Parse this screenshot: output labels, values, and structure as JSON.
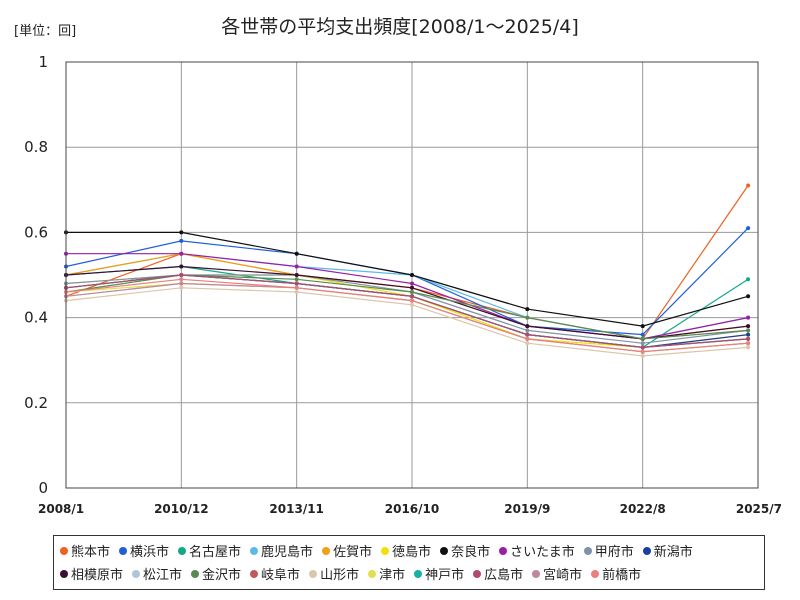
{
  "unit_label": "[単位：回]",
  "title": "各世帯の平均支出頻度[2008/1～2025/4]",
  "chart_data": {
    "type": "line",
    "title": "各世帯の平均支出頻度[2008/1～2025/4]",
    "ylabel": "[単位：回]",
    "xlabel": "",
    "ylim": [
      0,
      1
    ],
    "yticks": [
      "0",
      "0.2",
      "0.4",
      "0.6",
      "0.8",
      "1"
    ],
    "xticks": [
      "2008/1",
      "2010/12",
      "2013/11",
      "2016/10",
      "2019/9",
      "2022/8",
      "2025/7"
    ],
    "x_range": [
      "2008/1",
      "2025/7"
    ],
    "data_range": [
      "2008/1",
      "2025/4"
    ],
    "grid": true,
    "legend_position": "bottom",
    "series": [
      {
        "name": "熊本市",
        "color": "#f06020",
        "values": [
          {
            "x": "2008/1",
            "y": 0.45
          },
          {
            "x": "2010/12",
            "y": 0.55
          },
          {
            "x": "2013/11",
            "y": 0.5
          },
          {
            "x": "2016/10",
            "y": 0.47
          },
          {
            "x": "2019/9",
            "y": 0.4
          },
          {
            "x": "2022/8",
            "y": 0.35
          },
          {
            "x": "2025/4",
            "y": 0.71
          }
        ]
      },
      {
        "name": "横浜市",
        "color": "#1f5fd6",
        "values": [
          {
            "x": "2008/1",
            "y": 0.52
          },
          {
            "x": "2010/12",
            "y": 0.58
          },
          {
            "x": "2013/11",
            "y": 0.55
          },
          {
            "x": "2016/10",
            "y": 0.5
          },
          {
            "x": "2019/9",
            "y": 0.38
          },
          {
            "x": "2022/8",
            "y": 0.36
          },
          {
            "x": "2025/4",
            "y": 0.61
          }
        ]
      },
      {
        "name": "名古屋市",
        "color": "#14a888",
        "values": [
          {
            "x": "2008/1",
            "y": 0.5
          },
          {
            "x": "2010/12",
            "y": 0.52
          },
          {
            "x": "2013/11",
            "y": 0.48
          },
          {
            "x": "2016/10",
            "y": 0.45
          },
          {
            "x": "2019/9",
            "y": 0.36
          },
          {
            "x": "2022/8",
            "y": 0.33
          },
          {
            "x": "2025/4",
            "y": 0.49
          }
        ]
      },
      {
        "name": "鹿児島市",
        "color": "#5bbbe8",
        "values": [
          {
            "x": "2008/1",
            "y": 0.5
          },
          {
            "x": "2010/12",
            "y": 0.55
          },
          {
            "x": "2013/11",
            "y": 0.52
          },
          {
            "x": "2016/10",
            "y": 0.5
          },
          {
            "x": "2019/9",
            "y": 0.4
          },
          {
            "x": "2022/8",
            "y": 0.35
          },
          {
            "x": "2025/4",
            "y": 0.4
          }
        ]
      },
      {
        "name": "佐賀市",
        "color": "#f0a010",
        "values": [
          {
            "x": "2008/1",
            "y": 0.5
          },
          {
            "x": "2010/12",
            "y": 0.55
          },
          {
            "x": "2013/11",
            "y": 0.5
          },
          {
            "x": "2016/10",
            "y": 0.47
          },
          {
            "x": "2019/9",
            "y": 0.38
          },
          {
            "x": "2022/8",
            "y": 0.35
          },
          {
            "x": "2025/4",
            "y": 0.38
          }
        ]
      },
      {
        "name": "徳島市",
        "color": "#f2df10",
        "values": [
          {
            "x": "2008/1",
            "y": 0.48
          },
          {
            "x": "2010/12",
            "y": 0.5
          },
          {
            "x": "2013/11",
            "y": 0.5
          },
          {
            "x": "2016/10",
            "y": 0.45
          },
          {
            "x": "2019/9",
            "y": 0.35
          },
          {
            "x": "2022/8",
            "y": 0.33
          },
          {
            "x": "2025/4",
            "y": 0.36
          }
        ]
      },
      {
        "name": "奈良市",
        "color": "#111111",
        "values": [
          {
            "x": "2008/1",
            "y": 0.6
          },
          {
            "x": "2010/12",
            "y": 0.6
          },
          {
            "x": "2013/11",
            "y": 0.55
          },
          {
            "x": "2016/10",
            "y": 0.5
          },
          {
            "x": "2019/9",
            "y": 0.42
          },
          {
            "x": "2022/8",
            "y": 0.38
          },
          {
            "x": "2025/4",
            "y": 0.45
          }
        ]
      },
      {
        "name": "さいたま市",
        "color": "#9a1fa8",
        "values": [
          {
            "x": "2008/1",
            "y": 0.55
          },
          {
            "x": "2010/12",
            "y": 0.55
          },
          {
            "x": "2013/11",
            "y": 0.52
          },
          {
            "x": "2016/10",
            "y": 0.48
          },
          {
            "x": "2019/9",
            "y": 0.38
          },
          {
            "x": "2022/8",
            "y": 0.35
          },
          {
            "x": "2025/4",
            "y": 0.4
          }
        ]
      },
      {
        "name": "甲府市",
        "color": "#7f93a8",
        "values": [
          {
            "x": "2008/1",
            "y": 0.48
          },
          {
            "x": "2010/12",
            "y": 0.5
          },
          {
            "x": "2013/11",
            "y": 0.5
          },
          {
            "x": "2016/10",
            "y": 0.46
          },
          {
            "x": "2019/9",
            "y": 0.37
          },
          {
            "x": "2022/8",
            "y": 0.34
          },
          {
            "x": "2025/4",
            "y": 0.37
          }
        ]
      },
      {
        "name": "新潟市",
        "color": "#1a3f9c",
        "values": [
          {
            "x": "2008/1",
            "y": 0.47
          },
          {
            "x": "2010/12",
            "y": 0.5
          },
          {
            "x": "2013/11",
            "y": 0.48
          },
          {
            "x": "2016/10",
            "y": 0.45
          },
          {
            "x": "2019/9",
            "y": 0.36
          },
          {
            "x": "2022/8",
            "y": 0.33
          },
          {
            "x": "2025/4",
            "y": 0.36
          }
        ]
      },
      {
        "name": "相模原市",
        "color": "#3a1030",
        "values": [
          {
            "x": "2008/1",
            "y": 0.5
          },
          {
            "x": "2010/12",
            "y": 0.52
          },
          {
            "x": "2013/11",
            "y": 0.5
          },
          {
            "x": "2016/10",
            "y": 0.47
          },
          {
            "x": "2019/9",
            "y": 0.38
          },
          {
            "x": "2022/8",
            "y": 0.35
          },
          {
            "x": "2025/4",
            "y": 0.38
          }
        ]
      },
      {
        "name": "松江市",
        "color": "#b0c4d8",
        "values": [
          {
            "x": "2008/1",
            "y": 0.45
          },
          {
            "x": "2010/12",
            "y": 0.48
          },
          {
            "x": "2013/11",
            "y": 0.47
          },
          {
            "x": "2016/10",
            "y": 0.44
          },
          {
            "x": "2019/9",
            "y": 0.35
          },
          {
            "x": "2022/8",
            "y": 0.32
          },
          {
            "x": "2025/4",
            "y": 0.34
          }
        ]
      },
      {
        "name": "金沢市",
        "color": "#5a8a50",
        "values": [
          {
            "x": "2008/1",
            "y": 0.46
          },
          {
            "x": "2010/12",
            "y": 0.5
          },
          {
            "x": "2013/11",
            "y": 0.49
          },
          {
            "x": "2016/10",
            "y": 0.46
          },
          {
            "x": "2019/9",
            "y": 0.4
          },
          {
            "x": "2022/8",
            "y": 0.35
          },
          {
            "x": "2025/4",
            "y": 0.37
          }
        ]
      },
      {
        "name": "岐阜市",
        "color": "#c05a5a",
        "values": [
          {
            "x": "2008/1",
            "y": 0.47
          },
          {
            "x": "2010/12",
            "y": 0.5
          },
          {
            "x": "2013/11",
            "y": 0.48
          },
          {
            "x": "2016/10",
            "y": 0.45
          },
          {
            "x": "2019/9",
            "y": 0.36
          },
          {
            "x": "2022/8",
            "y": 0.33
          },
          {
            "x": "2025/4",
            "y": 0.35
          }
        ]
      },
      {
        "name": "山形市",
        "color": "#dcc6aa",
        "values": [
          {
            "x": "2008/1",
            "y": 0.44
          },
          {
            "x": "2010/12",
            "y": 0.47
          },
          {
            "x": "2013/11",
            "y": 0.46
          },
          {
            "x": "2016/10",
            "y": 0.43
          },
          {
            "x": "2019/9",
            "y": 0.34
          },
          {
            "x": "2022/8",
            "y": 0.31
          },
          {
            "x": "2025/4",
            "y": 0.33
          }
        ]
      },
      {
        "name": "津市",
        "color": "#e0e050",
        "values": [
          {
            "x": "2008/1",
            "y": 0.46
          },
          {
            "x": "2010/12",
            "y": 0.48
          },
          {
            "x": "2013/11",
            "y": 0.47
          },
          {
            "x": "2016/10",
            "y": 0.44
          },
          {
            "x": "2019/9",
            "y": 0.35
          },
          {
            "x": "2022/8",
            "y": 0.32
          },
          {
            "x": "2025/4",
            "y": 0.34
          }
        ]
      },
      {
        "name": "神戸市",
        "color": "#18b0a0",
        "values": [
          {
            "x": "2008/1",
            "y": 0.47
          },
          {
            "x": "2010/12",
            "y": 0.5
          },
          {
            "x": "2013/11",
            "y": 0.48
          },
          {
            "x": "2016/10",
            "y": 0.45
          },
          {
            "x": "2019/9",
            "y": 0.36
          },
          {
            "x": "2022/8",
            "y": 0.33
          },
          {
            "x": "2025/4",
            "y": 0.35
          }
        ]
      },
      {
        "name": "広島市",
        "color": "#b04a70",
        "values": [
          {
            "x": "2008/1",
            "y": 0.47
          },
          {
            "x": "2010/12",
            "y": 0.5
          },
          {
            "x": "2013/11",
            "y": 0.48
          },
          {
            "x": "2016/10",
            "y": 0.45
          },
          {
            "x": "2019/9",
            "y": 0.36
          },
          {
            "x": "2022/8",
            "y": 0.33
          },
          {
            "x": "2025/4",
            "y": 0.35
          }
        ]
      },
      {
        "name": "宮崎市",
        "color": "#c0889a",
        "values": [
          {
            "x": "2008/1",
            "y": 0.45
          },
          {
            "x": "2010/12",
            "y": 0.48
          },
          {
            "x": "2013/11",
            "y": 0.47
          },
          {
            "x": "2016/10",
            "y": 0.44
          },
          {
            "x": "2019/9",
            "y": 0.35
          },
          {
            "x": "2022/8",
            "y": 0.32
          },
          {
            "x": "2025/4",
            "y": 0.34
          }
        ]
      },
      {
        "name": "前橋市",
        "color": "#e88080",
        "values": [
          {
            "x": "2008/1",
            "y": 0.46
          },
          {
            "x": "2010/12",
            "y": 0.49
          },
          {
            "x": "2013/11",
            "y": 0.47
          },
          {
            "x": "2016/10",
            "y": 0.44
          },
          {
            "x": "2019/9",
            "y": 0.35
          },
          {
            "x": "2022/8",
            "y": 0.32
          },
          {
            "x": "2025/4",
            "y": 0.34
          }
        ]
      }
    ]
  }
}
